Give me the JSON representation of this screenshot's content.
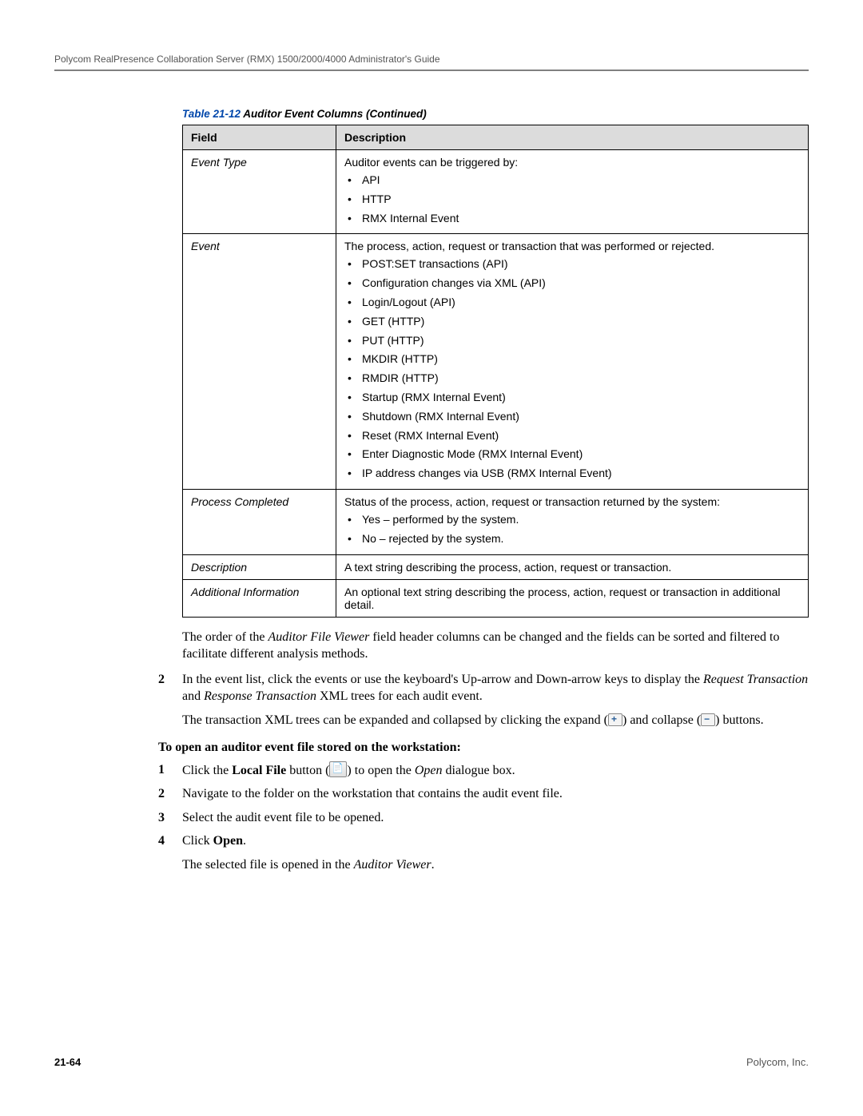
{
  "header": "Polycom RealPresence Collaboration Server (RMX) 1500/2000/4000 Administrator's Guide",
  "table": {
    "caption_label": "Table 21-12",
    "caption_title": " Auditor Event Columns (Continued)",
    "header_field": "Field",
    "header_desc": "Description",
    "rows": [
      {
        "field": "Event Type",
        "intro": "Auditor events can be triggered by:",
        "items": [
          "API",
          "HTTP",
          "RMX Internal Event"
        ]
      },
      {
        "field": "Event",
        "intro": "The process, action, request or transaction that was performed or rejected.",
        "items": [
          "POST:SET transactions (API)",
          "Configuration changes via XML (API)",
          "Login/Logout (API)",
          "GET (HTTP)",
          "PUT (HTTP)",
          "MKDIR (HTTP)",
          "RMDIR (HTTP)",
          "Startup (RMX Internal Event)",
          "Shutdown (RMX Internal Event)",
          "Reset (RMX Internal Event)",
          "Enter Diagnostic Mode (RMX Internal Event)",
          "IP address changes via USB (RMX Internal Event)"
        ]
      },
      {
        "field": "Process Completed",
        "intro": "Status of the process, action, request or transaction returned by the system:",
        "items": [
          "Yes – performed by the system.",
          "No – rejected by the system."
        ]
      },
      {
        "field": "Description",
        "intro": "A text string describing the process, action, request or transaction."
      },
      {
        "field": "Additional Information",
        "intro": "An optional text string describing the process, action, request or transaction in additional detail."
      }
    ]
  },
  "para1_a": "The order of the ",
  "para1_i": "Auditor File Viewer",
  "para1_b": " field header columns can be changed and the fields can be sorted and filtered to facilitate different analysis methods.",
  "step2_a": "In the event list, click the events or use the keyboard's Up-arrow and Down-arrow keys to display the ",
  "step2_i1": "Request Transaction",
  "step2_and": " and ",
  "step2_i2": "Response Transaction",
  "step2_b": " XML trees for each audit event.",
  "step2_p2_a": "The transaction XML trees can be expanded and collapsed by clicking the expand (",
  "step2_p2_b": ") and collapse (",
  "step2_p2_c": ") buttons.",
  "subheading": "To open an auditor event file stored on the workstation:",
  "s1_a": "Click the ",
  "s1_bold": "Local File",
  "s1_b": " button (",
  "s1_c": ") to open the ",
  "s1_i": "Open",
  "s1_d": " dialogue box.",
  "s2": "Navigate to the folder on the workstation that contains the audit event file.",
  "s3": "Select the audit event file to be opened.",
  "s4_a": "Click ",
  "s4_bold": "Open",
  "s4_b": ".",
  "s4_p2_a": "The selected file is opened in the ",
  "s4_p2_i": "Auditor Viewer",
  "s4_p2_b": ".",
  "nums": {
    "n1": "1",
    "n2": "2",
    "n3": "3",
    "n4": "4",
    "main2": "2"
  },
  "footer": {
    "page": "21-64",
    "company": "Polycom, Inc."
  }
}
